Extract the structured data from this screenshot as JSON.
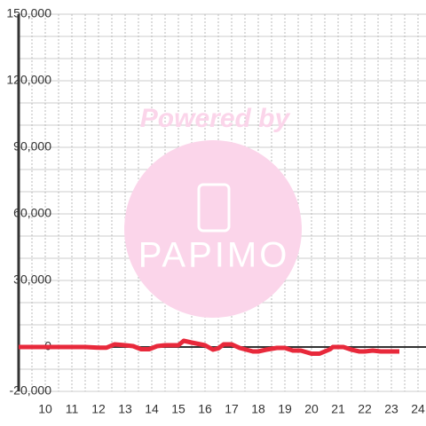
{
  "chart_data": {
    "type": "line",
    "watermark": [
      "Powered by",
      "PAPIMO"
    ],
    "xlim": [
      9,
      24.3
    ],
    "xticks": [
      10,
      11,
      12,
      13,
      14,
      15,
      16,
      17,
      18,
      19,
      20,
      21,
      22,
      23,
      24
    ],
    "xgrid": [
      9.5,
      10,
      10.5,
      11,
      11.5,
      12,
      12.5,
      13,
      13.5,
      14,
      14.5,
      15,
      15.5,
      16,
      16.5,
      17,
      17.5,
      18,
      18.5,
      19,
      19.5,
      20,
      20.5,
      21,
      21.5,
      22,
      22.5,
      23,
      23.5,
      24
    ],
    "ylim": [
      -20000,
      150000
    ],
    "yticks": [
      {
        "value": 150000,
        "label": "150,000"
      },
      {
        "value": 120000,
        "label": "120,000"
      },
      {
        "value": 90000,
        "label": "90,000"
      },
      {
        "value": 60000,
        "label": "60,000"
      },
      {
        "value": 30000,
        "label": "30,000"
      },
      0,
      {
        "value": -20000,
        "label": "-20,000"
      }
    ],
    "ygrid": [
      -10000,
      10000,
      20000,
      40000,
      50000,
      70000,
      80000,
      100000,
      110000,
      130000,
      140000
    ],
    "grid": true,
    "series": [
      {
        "color": "#e8293b",
        "x": [
          9,
          10,
          11,
          11.5,
          12,
          12.3,
          12.6,
          13,
          13.3,
          13.6,
          13.9,
          14.2,
          14.5,
          15,
          15.2,
          15.5,
          16,
          16.3,
          16.5,
          16.7,
          17,
          17.3,
          17.8,
          18,
          18.3,
          18.7,
          19,
          19.3,
          19.6,
          20,
          20.3,
          20.7,
          20.8,
          21.2,
          21.5,
          21.8,
          22,
          22.3,
          22.6,
          23.3
        ],
        "values": [
          0,
          0,
          0,
          0,
          -300,
          -300,
          1200,
          800,
          400,
          -1000,
          -1000,
          400,
          800,
          800,
          2800,
          2000,
          800,
          -1200,
          -600,
          1200,
          1200,
          -400,
          -2000,
          -2000,
          -1200,
          -400,
          -400,
          -1600,
          -1600,
          -3000,
          -3000,
          -1000,
          0,
          0,
          -1200,
          -2000,
          -2000,
          -1600,
          -2000,
          -2000
        ]
      }
    ]
  }
}
